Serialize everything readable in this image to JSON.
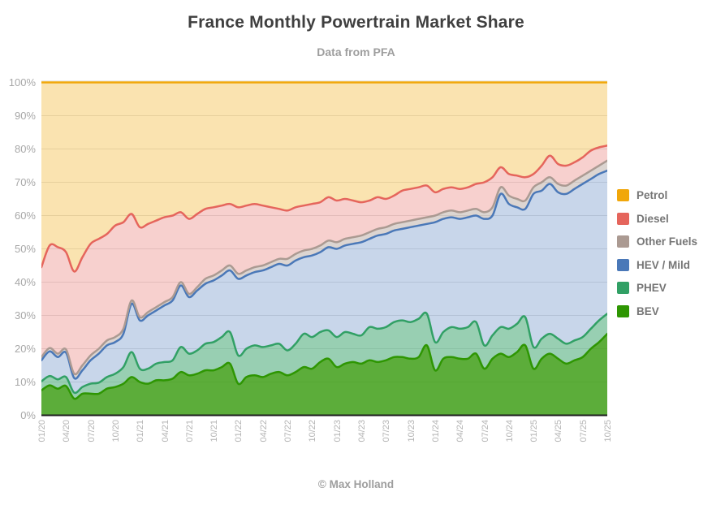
{
  "header": {
    "title": "France Monthly Powertrain Market Share",
    "subtitle": "Data from PFA"
  },
  "footer": {
    "credit": "© Max Holland"
  },
  "colors": {
    "axis_line": "#1c1c1c",
    "gridline": "#e2e2e2",
    "title_text": "#3f3f3f",
    "muted_text": "#9e9e9e",
    "tick_text": "#b3b3b3"
  },
  "chart_data": {
    "type": "area",
    "stacked": true,
    "unit": "%",
    "ylim": [
      0,
      100
    ],
    "grid": true,
    "legend_position": "right",
    "legend_order": "top-down",
    "y_tick_labels": [
      "0%",
      "10%",
      "20%",
      "30%",
      "40%",
      "50%",
      "60%",
      "70%",
      "80%",
      "90%",
      "100%"
    ],
    "x_tick_every_months": 3,
    "months": [
      "01/20",
      "02/20",
      "03/20",
      "04/20",
      "05/20",
      "06/20",
      "07/20",
      "08/20",
      "09/20",
      "10/20",
      "11/20",
      "12/20",
      "01/21",
      "02/21",
      "03/21",
      "04/21",
      "05/21",
      "06/21",
      "07/21",
      "08/21",
      "09/21",
      "10/21",
      "11/21",
      "12/21",
      "01/22",
      "02/22",
      "03/22",
      "04/22",
      "05/22",
      "06/22",
      "07/22",
      "08/22",
      "09/22",
      "10/22",
      "11/22",
      "12/22",
      "01/23",
      "02/23",
      "03/23",
      "04/23",
      "05/23",
      "06/23",
      "07/23",
      "08/23",
      "09/23",
      "10/23",
      "11/23",
      "12/23",
      "01/24",
      "02/24",
      "03/24",
      "04/24",
      "05/24",
      "06/24",
      "07/24",
      "08/24",
      "09/24",
      "10/24",
      "11/24",
      "12/24",
      "01/25",
      "02/25",
      "03/25",
      "04/25",
      "05/25",
      "06/25",
      "07/25",
      "08/25",
      "09/25",
      "10/25"
    ],
    "series": [
      {
        "name": "BEV",
        "color": "#2E9602",
        "fill_alpha": 0.78,
        "values": [
          7.5,
          9,
          8,
          8.8,
          5,
          6.5,
          6.5,
          6.5,
          8,
          8.5,
          9.5,
          11.5,
          10,
          9.5,
          10.5,
          10.5,
          11,
          13,
          12,
          12.5,
          13.5,
          13.5,
          14.5,
          15.5,
          9.5,
          11.5,
          12,
          11.5,
          12.5,
          13,
          12,
          13,
          14.5,
          14,
          16,
          17,
          14.5,
          15.5,
          16,
          15.5,
          16.5,
          16,
          16.5,
          17.5,
          17.5,
          17,
          17.5,
          21,
          13.5,
          17,
          17.5,
          17,
          17,
          18.5,
          14,
          17,
          18.5,
          17.5,
          19,
          21,
          14,
          17,
          18.5,
          17,
          15.5,
          16.5,
          17.5,
          20,
          22,
          24.5
        ]
      },
      {
        "name": "PHEV",
        "color": "#31A065",
        "fill_alpha": 0.5,
        "values": [
          2.7,
          2.8,
          2.8,
          2.7,
          1.8,
          2,
          3,
          3.3,
          3.5,
          4,
          5,
          7.5,
          4,
          4.5,
          5,
          5.5,
          5.5,
          7.5,
          6.5,
          7,
          8,
          8.5,
          9,
          9.5,
          8.5,
          8.5,
          9,
          9,
          8.5,
          8.5,
          7.5,
          8.5,
          10,
          9.5,
          9,
          8.5,
          9,
          9.5,
          8.5,
          8.5,
          10,
          10,
          10,
          10.5,
          11,
          11,
          11.5,
          9.5,
          8.5,
          8,
          9,
          9,
          9.5,
          9.5,
          7,
          7,
          8,
          8.5,
          8.5,
          8.5,
          6.5,
          6,
          6,
          6,
          6,
          6,
          6,
          6,
          6.5,
          6
        ]
      },
      {
        "name": "HEV / Mild",
        "color": "#4A78B8",
        "fill_alpha": 0.3,
        "values": [
          6.3,
          7.4,
          6.7,
          7.3,
          4.4,
          5,
          7,
          8.7,
          9.5,
          9.5,
          10,
          14.5,
          14.5,
          16,
          16,
          17,
          18,
          18.5,
          17,
          18,
          18,
          18.5,
          18.5,
          18.5,
          23,
          22,
          22,
          23,
          23.5,
          24,
          25.5,
          25,
          23,
          24.5,
          24,
          25,
          26.5,
          26,
          27,
          28,
          26.5,
          28,
          28,
          27.5,
          27.5,
          28.5,
          28,
          27,
          36,
          34,
          33,
          33,
          33,
          32,
          38,
          36,
          40,
          37.5,
          35,
          32.5,
          46,
          44.5,
          45,
          44,
          45,
          45.5,
          46,
          45,
          44,
          43
        ]
      },
      {
        "name": "Other Fuels",
        "color": "#AB9A92",
        "fill_alpha": 0.42,
        "values": [
          1,
          1,
          1,
          1,
          1.3,
          1.5,
          1.5,
          1.5,
          1.5,
          1.5,
          1.5,
          1,
          1,
          1,
          1,
          1,
          1,
          1,
          1,
          1,
          1.5,
          1.5,
          1.5,
          1.5,
          1.5,
          1.5,
          1.5,
          1.5,
          1.5,
          1.5,
          2,
          2,
          2,
          2,
          2,
          2,
          2,
          2,
          2,
          2,
          2,
          2,
          2,
          2,
          2,
          2,
          2,
          2,
          2,
          2,
          2,
          2,
          2,
          2,
          2,
          2.5,
          2,
          2.5,
          2.5,
          2.5,
          2,
          2.5,
          2,
          2.5,
          2.5,
          2.5,
          2.5,
          2.5,
          2.5,
          3
        ]
      },
      {
        "name": "Diesel",
        "color": "#E5655C",
        "fill_alpha": 0.3,
        "values": [
          27,
          30.8,
          32,
          29.2,
          30.7,
          32.5,
          33.5,
          33,
          32,
          33.5,
          32,
          26,
          27,
          26.5,
          26,
          25.5,
          24.5,
          21,
          22.5,
          22,
          21,
          20.5,
          19.5,
          18.5,
          20,
          19.5,
          19,
          18,
          16.5,
          15,
          14.5,
          14,
          13.5,
          13.5,
          13,
          13,
          12.5,
          12,
          11,
          10,
          9.5,
          9.5,
          8.5,
          8.5,
          9.5,
          9.5,
          9.5,
          9.5,
          7,
          7,
          7,
          7,
          7,
          7.5,
          9,
          9,
          6,
          6.5,
          7,
          7,
          4,
          5,
          6.5,
          6,
          6,
          5.5,
          5.5,
          6,
          5.5,
          4.5
        ]
      },
      {
        "name": "Petrol",
        "color": "#F1A70A",
        "fill_alpha": 0.32,
        "values": [
          55.5,
          49,
          49.5,
          51,
          56.8,
          52.5,
          48.5,
          47,
          45.5,
          43,
          42,
          39.5,
          43.5,
          42.5,
          41.5,
          40.5,
          40,
          39,
          41,
          39.5,
          38,
          37.5,
          37,
          36.5,
          37.5,
          37,
          36.5,
          37,
          37.5,
          38,
          38.5,
          37.5,
          37,
          36.5,
          36,
          34.5,
          35.5,
          35,
          35.5,
          36,
          35.5,
          34.5,
          35,
          34,
          32.5,
          32,
          31.5,
          31,
          33,
          32,
          31.5,
          32,
          31.5,
          30.5,
          30,
          28.5,
          25.5,
          27.5,
          28,
          28.5,
          27.5,
          25,
          22,
          24.5,
          25,
          24,
          22.5,
          20.5,
          19.5,
          19
        ]
      }
    ]
  }
}
